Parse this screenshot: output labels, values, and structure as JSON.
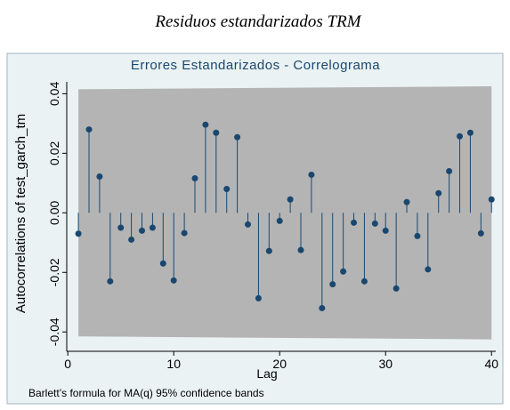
{
  "caption": "Residuos estandarizados TRM",
  "chart_data": {
    "type": "stem",
    "title": "Errores Estandarizados - Correlograma",
    "x_label": "Lag",
    "y_label": "Autocorrelations of test_garch_tm",
    "note": "Barlett’s formula for MA(q) 95% confidence bands",
    "x": [
      1,
      2,
      3,
      4,
      5,
      6,
      7,
      8,
      9,
      10,
      11,
      12,
      13,
      14,
      15,
      16,
      17,
      18,
      19,
      20,
      21,
      22,
      23,
      24,
      25,
      26,
      27,
      28,
      29,
      30,
      31,
      32,
      33,
      34,
      35,
      36,
      37,
      38,
      39,
      40
    ],
    "values": [
      -0.007,
      0.028,
      0.0122,
      -0.023,
      -0.005,
      -0.009,
      -0.006,
      -0.005,
      -0.017,
      -0.0227,
      -0.0068,
      0.0116,
      0.0296,
      0.0269,
      0.008,
      0.0254,
      -0.0039,
      -0.0287,
      -0.0128,
      -0.0027,
      0.0045,
      -0.0125,
      0.0128,
      -0.032,
      -0.024,
      -0.0197,
      -0.0033,
      -0.023,
      -0.0036,
      -0.006,
      -0.0254,
      0.0036,
      -0.0078,
      -0.019,
      0.0066,
      0.014,
      0.0257,
      0.0269,
      -0.0069,
      0.0045
    ],
    "color": "#1a476f",
    "band": {
      "lags": [
        1,
        40
      ],
      "upper": [
        0.0415,
        0.0425
      ],
      "lower": [
        -0.0415,
        -0.0425
      ],
      "color": "#b4b4b4"
    },
    "xlim": [
      -0.1,
      40.4
    ],
    "ylim": [
      -0.0465,
      0.044
    ],
    "xticks": [
      0,
      10,
      20,
      30,
      40
    ],
    "yticks": [
      -0.04,
      -0.02,
      {
        "value": 0,
        "label": "0.00"
      },
      0.02,
      0.04
    ]
  }
}
